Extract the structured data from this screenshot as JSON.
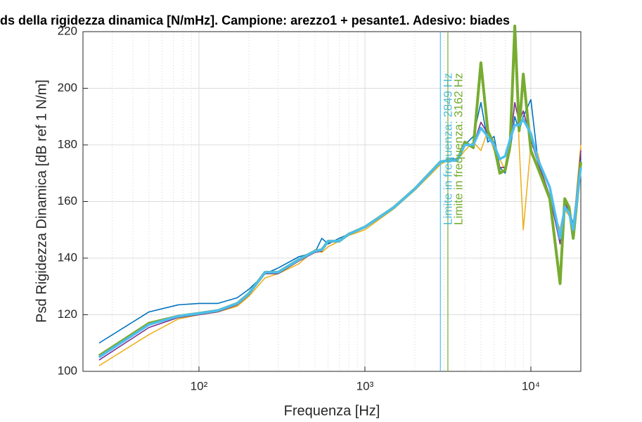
{
  "chart_data": {
    "type": "line",
    "title": "ds della rigidezza dinamica [N/mHz]. Campione: arezzo1 + pesante1. Adesivo: biades",
    "xlabel": "Frequenza [Hz]",
    "ylabel": "Psd Rigidezza Dinamica [dB ref 1 N/m]",
    "xscale": "log",
    "grid": true,
    "minor_grid": true,
    "xlim": [
      20,
      20000
    ],
    "ylim": [
      100,
      220
    ],
    "xticks": [
      {
        "value": 100,
        "label": "10²"
      },
      {
        "value": 1000,
        "label": "10³"
      },
      {
        "value": 10000,
        "label": "10⁴"
      }
    ],
    "yticks": [
      100,
      120,
      140,
      160,
      180,
      200,
      220
    ],
    "x": [
      25,
      50,
      75,
      100,
      130,
      170,
      200,
      250,
      300,
      400,
      500,
      550,
      600,
      700,
      800,
      1000,
      1500,
      2000,
      2849,
      3200,
      3600,
      4000,
      4500,
      5000,
      5500,
      6000,
      6500,
      7000,
      7500,
      8000,
      8500,
      9000,
      10000,
      11000,
      13000,
      15000,
      16000,
      17000,
      18000,
      20000
    ],
    "series": [
      {
        "color": "#0072BD",
        "linewidth": 1.6,
        "values": [
          110,
          121,
          123.5,
          124,
          124,
          126,
          129,
          134.5,
          136.5,
          140.5,
          142,
          147,
          145,
          147,
          148.5,
          151,
          158,
          164,
          174,
          175,
          175,
          180,
          183,
          195,
          181,
          183,
          172,
          170,
          178,
          190,
          185,
          190,
          196,
          175,
          160,
          150,
          158,
          157,
          152,
          175
        ]
      },
      {
        "color": "#EDB120",
        "linewidth": 1.6,
        "values": [
          102,
          113,
          118.5,
          120,
          121,
          123,
          126.5,
          133,
          134.5,
          138,
          143,
          142,
          144,
          146,
          148,
          150,
          157.5,
          164,
          173,
          175,
          174.5,
          178,
          181,
          178,
          185,
          178,
          175,
          171,
          178,
          222,
          180,
          150,
          180,
          177,
          160,
          150,
          157,
          155,
          150,
          180
        ]
      },
      {
        "color": "#7E2F8E",
        "linewidth": 1.6,
        "values": [
          104,
          115.5,
          119,
          120,
          121,
          123.5,
          127,
          134.5,
          134.5,
          139,
          142,
          142.5,
          145.5,
          146,
          148.5,
          151,
          158,
          164.5,
          174,
          174.5,
          174.5,
          180,
          180,
          188,
          184,
          180,
          172,
          172,
          180,
          195,
          188,
          192,
          182,
          174,
          162,
          145,
          160,
          156,
          150,
          178
        ]
      },
      {
        "color": "#77AC30",
        "linewidth": 4,
        "values": [
          105.5,
          117,
          119.5,
          120.5,
          121.5,
          124,
          127.5,
          135,
          135,
          139.5,
          142.5,
          143,
          146,
          146,
          148.5,
          151,
          158,
          164.5,
          174,
          174.5,
          174.5,
          181,
          179,
          209,
          185,
          180,
          170,
          171,
          180,
          222,
          185,
          205,
          178,
          172,
          161,
          131,
          161,
          158,
          147,
          174
        ]
      },
      {
        "color": "#4DBEEE",
        "linewidth": 3.5,
        "values": [
          105,
          116.5,
          119.5,
          120.5,
          121.5,
          124,
          127.5,
          135,
          135,
          139.5,
          142.5,
          143,
          146,
          146,
          148.5,
          151,
          158,
          164.5,
          174,
          174.5,
          174.5,
          180,
          180,
          186,
          183,
          180,
          175,
          176,
          182,
          187,
          187,
          189,
          184,
          175,
          165,
          147,
          158,
          156,
          150,
          172
        ]
      }
    ],
    "vlines": [
      {
        "value": 2849,
        "label": "Limite in frequenza: 2849 Hz",
        "color": "#4DBEEE"
      },
      {
        "value": 3162,
        "label": "Limite in frequenza: 3162 Hz",
        "color": "#77AC30"
      }
    ]
  }
}
